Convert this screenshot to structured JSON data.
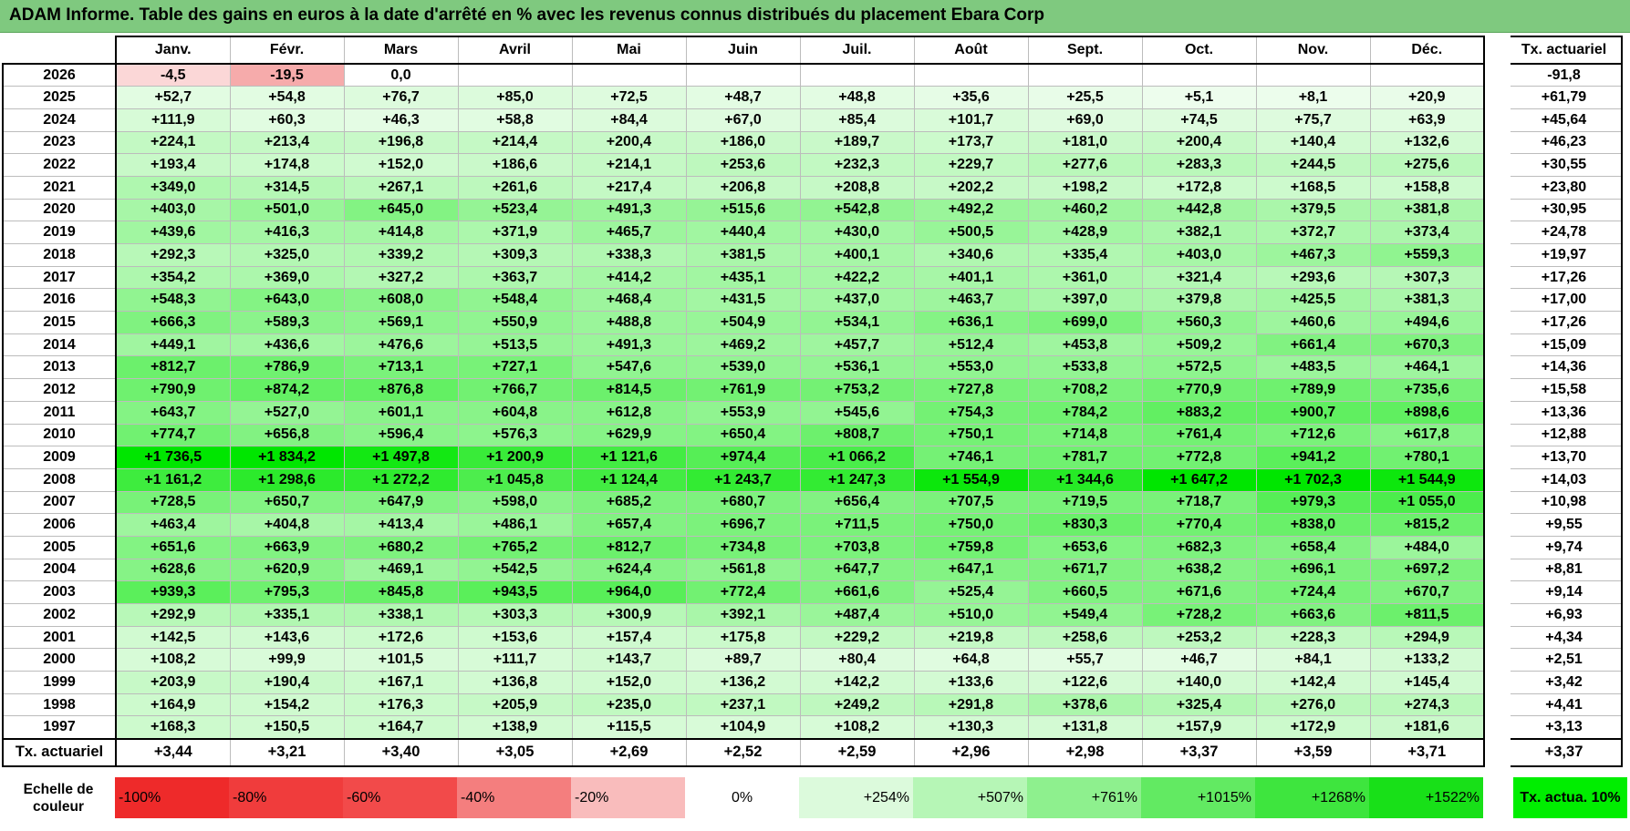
{
  "title": "ADAM Informe. Table des gains en euros à la date d'arrêté en % avec les revenus connus distribués du placement Ebara Corp",
  "months": [
    "Janv.",
    "Févr.",
    "Mars",
    "Avril",
    "Mai",
    "Juin",
    "Juil.",
    "Août",
    "Sept.",
    "Oct.",
    "Nov.",
    "Déc."
  ],
  "tx_header": "Tx. actuariel",
  "rows": [
    {
      "year": "2026",
      "v": [
        "-4,5",
        "-19,5",
        "0,0",
        "",
        "",
        "",
        "",
        "",
        "",
        "",
        "",
        ""
      ],
      "tx": "-91,8"
    },
    {
      "year": "2025",
      "v": [
        "+52,7",
        "+54,8",
        "+76,7",
        "+85,0",
        "+72,5",
        "+48,7",
        "+48,8",
        "+35,6",
        "+25,5",
        "+5,1",
        "+8,1",
        "+20,9"
      ],
      "tx": "+61,79"
    },
    {
      "year": "2024",
      "v": [
        "+111,9",
        "+60,3",
        "+46,3",
        "+58,8",
        "+84,4",
        "+67,0",
        "+85,4",
        "+101,7",
        "+69,0",
        "+74,5",
        "+75,7",
        "+63,9"
      ],
      "tx": "+45,64"
    },
    {
      "year": "2023",
      "v": [
        "+224,1",
        "+213,4",
        "+196,8",
        "+214,4",
        "+200,4",
        "+186,0",
        "+189,7",
        "+173,7",
        "+181,0",
        "+200,4",
        "+140,4",
        "+132,6"
      ],
      "tx": "+46,23"
    },
    {
      "year": "2022",
      "v": [
        "+193,4",
        "+174,8",
        "+152,0",
        "+186,6",
        "+214,1",
        "+253,6",
        "+232,3",
        "+229,7",
        "+277,6",
        "+283,3",
        "+244,5",
        "+275,6"
      ],
      "tx": "+30,55"
    },
    {
      "year": "2021",
      "v": [
        "+349,0",
        "+314,5",
        "+267,1",
        "+261,6",
        "+217,4",
        "+206,8",
        "+208,8",
        "+202,2",
        "+198,2",
        "+172,8",
        "+168,5",
        "+158,8"
      ],
      "tx": "+23,80"
    },
    {
      "year": "2020",
      "v": [
        "+403,0",
        "+501,0",
        "+645,0",
        "+523,4",
        "+491,3",
        "+515,6",
        "+542,8",
        "+492,2",
        "+460,2",
        "+442,8",
        "+379,5",
        "+381,8"
      ],
      "tx": "+30,95"
    },
    {
      "year": "2019",
      "v": [
        "+439,6",
        "+416,3",
        "+414,8",
        "+371,9",
        "+465,7",
        "+440,4",
        "+430,0",
        "+500,5",
        "+428,9",
        "+382,1",
        "+372,7",
        "+373,4"
      ],
      "tx": "+24,78"
    },
    {
      "year": "2018",
      "v": [
        "+292,3",
        "+325,0",
        "+339,2",
        "+309,3",
        "+338,3",
        "+381,5",
        "+400,1",
        "+340,6",
        "+335,4",
        "+403,0",
        "+467,3",
        "+559,3"
      ],
      "tx": "+19,97"
    },
    {
      "year": "2017",
      "v": [
        "+354,2",
        "+369,0",
        "+327,2",
        "+363,7",
        "+414,2",
        "+435,1",
        "+422,2",
        "+401,1",
        "+361,0",
        "+321,4",
        "+293,6",
        "+307,3"
      ],
      "tx": "+17,26"
    },
    {
      "year": "2016",
      "v": [
        "+548,3",
        "+643,0",
        "+608,0",
        "+548,4",
        "+468,4",
        "+431,5",
        "+437,0",
        "+463,7",
        "+397,0",
        "+379,8",
        "+425,5",
        "+381,3"
      ],
      "tx": "+17,00"
    },
    {
      "year": "2015",
      "v": [
        "+666,3",
        "+589,3",
        "+569,1",
        "+550,9",
        "+488,8",
        "+504,9",
        "+534,1",
        "+636,1",
        "+699,0",
        "+560,3",
        "+460,6",
        "+494,6"
      ],
      "tx": "+17,26"
    },
    {
      "year": "2014",
      "v": [
        "+449,1",
        "+436,6",
        "+476,6",
        "+513,5",
        "+491,3",
        "+469,2",
        "+457,7",
        "+512,4",
        "+453,8",
        "+509,2",
        "+661,4",
        "+670,3"
      ],
      "tx": "+15,09"
    },
    {
      "year": "2013",
      "v": [
        "+812,7",
        "+786,9",
        "+713,1",
        "+727,1",
        "+547,6",
        "+539,0",
        "+536,1",
        "+553,0",
        "+533,8",
        "+572,5",
        "+483,5",
        "+464,1"
      ],
      "tx": "+14,36"
    },
    {
      "year": "2012",
      "v": [
        "+790,9",
        "+874,2",
        "+876,8",
        "+766,7",
        "+814,5",
        "+761,9",
        "+753,2",
        "+727,8",
        "+708,2",
        "+770,9",
        "+789,9",
        "+735,6"
      ],
      "tx": "+15,58"
    },
    {
      "year": "2011",
      "v": [
        "+643,7",
        "+527,0",
        "+601,1",
        "+604,8",
        "+612,8",
        "+553,9",
        "+545,6",
        "+754,3",
        "+784,2",
        "+883,2",
        "+900,7",
        "+898,6"
      ],
      "tx": "+13,36"
    },
    {
      "year": "2010",
      "v": [
        "+774,7",
        "+656,8",
        "+596,4",
        "+576,3",
        "+629,9",
        "+650,4",
        "+808,7",
        "+750,1",
        "+714,8",
        "+761,4",
        "+712,6",
        "+617,8"
      ],
      "tx": "+12,88"
    },
    {
      "year": "2009",
      "v": [
        "+1 736,5",
        "+1 834,2",
        "+1 497,8",
        "+1 200,9",
        "+1 121,6",
        "+974,4",
        "+1 066,2",
        "+746,1",
        "+781,7",
        "+772,8",
        "+941,2",
        "+780,1"
      ],
      "tx": "+13,70"
    },
    {
      "year": "2008",
      "v": [
        "+1 161,2",
        "+1 298,6",
        "+1 272,2",
        "+1 045,8",
        "+1 124,4",
        "+1 243,7",
        "+1 247,3",
        "+1 554,9",
        "+1 344,6",
        "+1 647,2",
        "+1 702,3",
        "+1 544,9"
      ],
      "tx": "+14,03"
    },
    {
      "year": "2007",
      "v": [
        "+728,5",
        "+650,7",
        "+647,9",
        "+598,0",
        "+685,2",
        "+680,7",
        "+656,4",
        "+707,5",
        "+719,5",
        "+718,7",
        "+979,3",
        "+1 055,0"
      ],
      "tx": "+10,98"
    },
    {
      "year": "2006",
      "v": [
        "+463,4",
        "+404,8",
        "+413,4",
        "+486,1",
        "+657,4",
        "+696,7",
        "+711,5",
        "+750,0",
        "+830,3",
        "+770,4",
        "+838,0",
        "+815,2"
      ],
      "tx": "+9,55"
    },
    {
      "year": "2005",
      "v": [
        "+651,6",
        "+663,9",
        "+680,2",
        "+765,2",
        "+812,7",
        "+734,8",
        "+703,8",
        "+759,8",
        "+653,6",
        "+682,3",
        "+658,4",
        "+484,0"
      ],
      "tx": "+9,74"
    },
    {
      "year": "2004",
      "v": [
        "+628,6",
        "+620,9",
        "+469,1",
        "+542,5",
        "+624,4",
        "+561,8",
        "+647,7",
        "+647,1",
        "+671,7",
        "+638,2",
        "+696,1",
        "+697,2"
      ],
      "tx": "+8,81"
    },
    {
      "year": "2003",
      "v": [
        "+939,3",
        "+795,3",
        "+845,8",
        "+943,5",
        "+964,0",
        "+772,4",
        "+661,6",
        "+525,4",
        "+660,5",
        "+671,6",
        "+724,4",
        "+670,7"
      ],
      "tx": "+9,14"
    },
    {
      "year": "2002",
      "v": [
        "+292,9",
        "+335,1",
        "+338,1",
        "+303,3",
        "+300,9",
        "+392,1",
        "+487,4",
        "+510,0",
        "+549,4",
        "+728,2",
        "+663,6",
        "+811,5"
      ],
      "tx": "+6,93"
    },
    {
      "year": "2001",
      "v": [
        "+142,5",
        "+143,6",
        "+172,6",
        "+153,6",
        "+157,4",
        "+175,8",
        "+229,2",
        "+219,8",
        "+258,6",
        "+253,2",
        "+228,3",
        "+294,9"
      ],
      "tx": "+4,34"
    },
    {
      "year": "2000",
      "v": [
        "+108,2",
        "+99,9",
        "+101,5",
        "+111,7",
        "+143,7",
        "+89,7",
        "+80,4",
        "+64,8",
        "+55,7",
        "+46,7",
        "+84,1",
        "+133,2"
      ],
      "tx": "+2,51"
    },
    {
      "year": "1999",
      "v": [
        "+203,9",
        "+190,4",
        "+167,1",
        "+136,8",
        "+152,0",
        "+136,2",
        "+142,2",
        "+133,6",
        "+122,6",
        "+140,0",
        "+142,4",
        "+145,4"
      ],
      "tx": "+3,42"
    },
    {
      "year": "1998",
      "v": [
        "+164,9",
        "+154,2",
        "+176,3",
        "+205,9",
        "+235,0",
        "+237,1",
        "+249,2",
        "+291,8",
        "+378,6",
        "+325,4",
        "+276,0",
        "+274,3"
      ],
      "tx": "+4,41"
    },
    {
      "year": "1997",
      "v": [
        "+168,3",
        "+150,5",
        "+164,7",
        "+138,9",
        "+115,5",
        "+104,9",
        "+108,2",
        "+130,3",
        "+131,8",
        "+157,9",
        "+172,9",
        "+181,6"
      ],
      "tx": "+3,13"
    }
  ],
  "footer": {
    "label": "Tx. actuariel",
    "v": [
      "+3,44",
      "+3,21",
      "+3,40",
      "+3,05",
      "+2,69",
      "+2,52",
      "+2,59",
      "+2,96",
      "+2,98",
      "+3,37",
      "+3,59",
      "+3,71"
    ],
    "tx": "+3,37"
  },
  "legend": {
    "label": "Echelle de couleur",
    "items": [
      {
        "text": "-100%",
        "color": "#ee2a2a",
        "align": "neg"
      },
      {
        "text": "-80%",
        "color": "#f03c3c",
        "align": "neg"
      },
      {
        "text": "-60%",
        "color": "#f24a4a",
        "align": "neg"
      },
      {
        "text": "-40%",
        "color": "#f47e7e",
        "align": "neg"
      },
      {
        "text": "-20%",
        "color": "#f9bcbc",
        "align": "neg"
      },
      {
        "text": "0%",
        "color": "#ffffff",
        "align": "zero"
      },
      {
        "text": "+254%",
        "color": "#dcfadc",
        "align": "pos"
      },
      {
        "text": "+507%",
        "color": "#b6f6b6",
        "align": "pos"
      },
      {
        "text": "+761%",
        "color": "#8ef08e",
        "align": "pos"
      },
      {
        "text": "+1015%",
        "color": "#62ea62",
        "align": "pos"
      },
      {
        "text": "+1268%",
        "color": "#3ee53e",
        "align": "pos"
      },
      {
        "text": "+1522%",
        "color": "#18e018",
        "align": "pos"
      }
    ],
    "tx_label": "Tx. actua. 10%",
    "tx_color": "#00ee00"
  },
  "colors": {
    "title_bg": "#7fc97f",
    "neg_light": "#fde4e4",
    "neg_strong": "#f6aaaa",
    "pos_light": "#effdef",
    "pos_max": "#00e600"
  }
}
